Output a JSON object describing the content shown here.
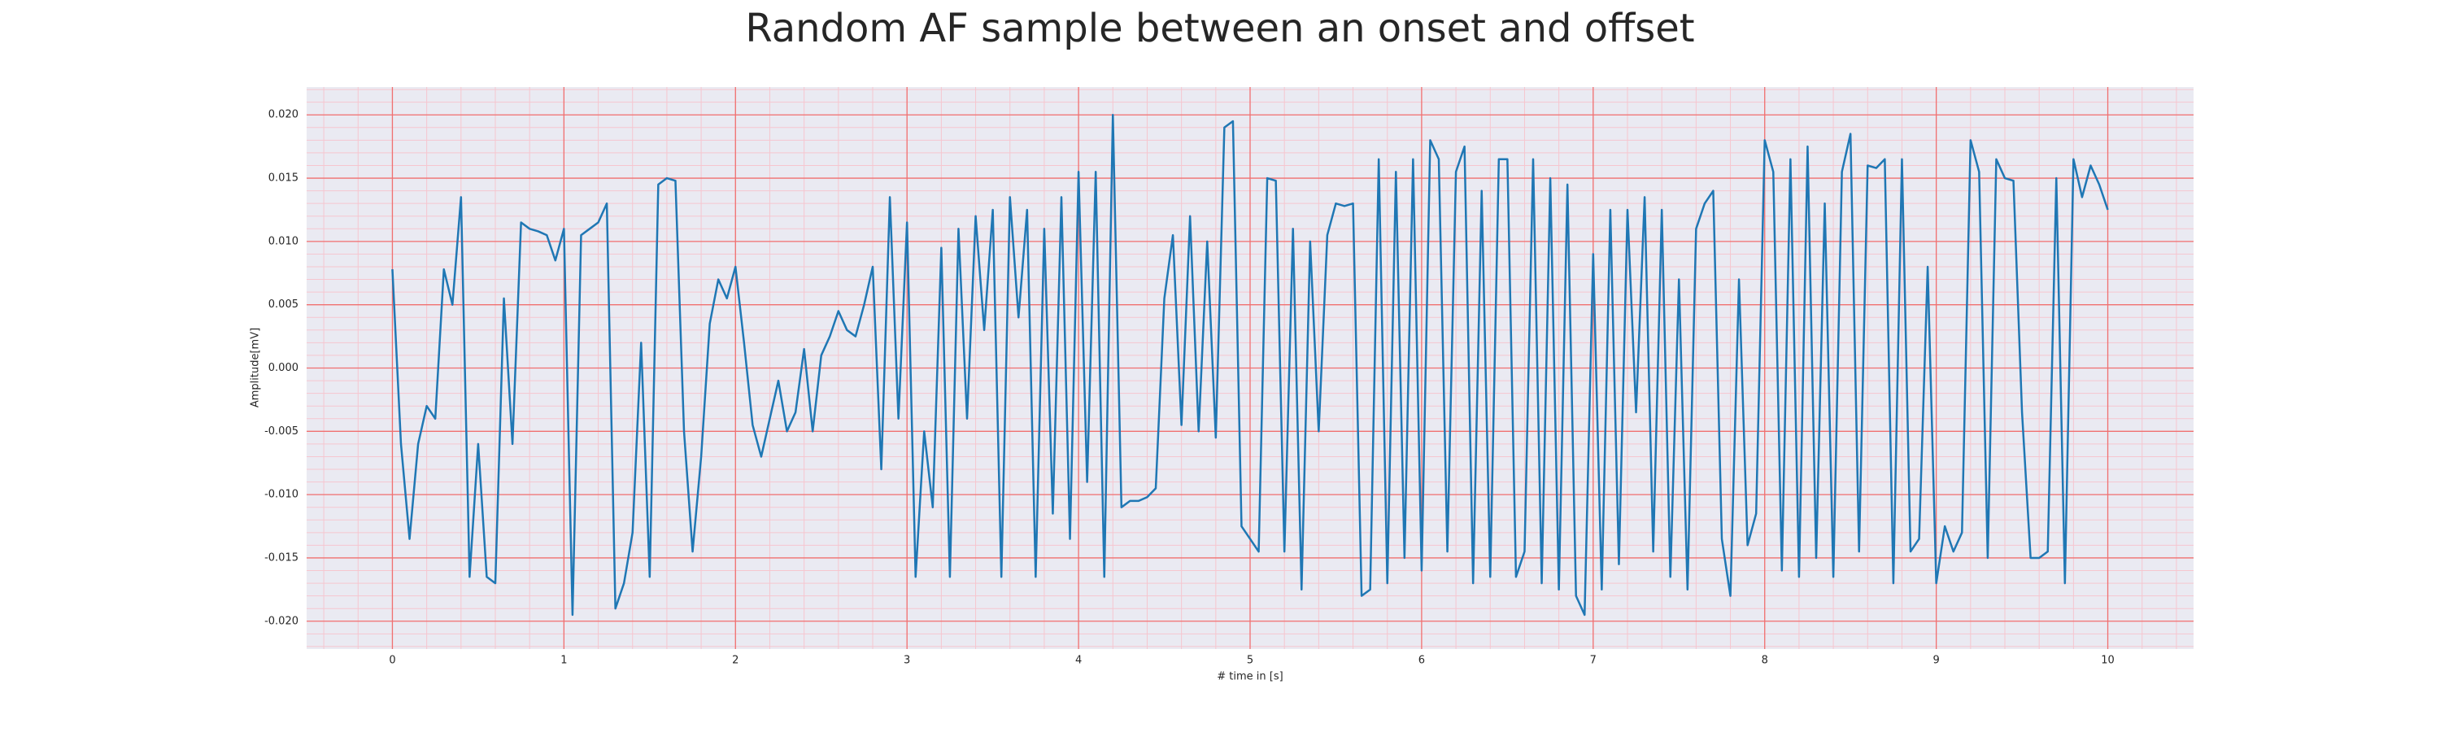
{
  "chart_data": {
    "type": "line",
    "title": "Random AF sample between an onset and offset",
    "x_label": "# time in [s]",
    "y_label": "Amplitude[mV]",
    "color": "#1f77b4",
    "grid": true,
    "minor_grid": true,
    "xlim": [
      -0.5,
      10.5
    ],
    "ylim": [
      -0.0222,
      0.0222
    ],
    "xticks": [
      0,
      1,
      2,
      3,
      4,
      5,
      6,
      7,
      8,
      9,
      10
    ],
    "yticks": [
      {
        "value": -0.02,
        "label": "-0.020"
      },
      {
        "value": -0.015,
        "label": "-0.015"
      },
      {
        "value": -0.01,
        "label": "-0.010"
      },
      {
        "value": -0.005,
        "label": "-0.005"
      },
      {
        "value": 0,
        "label": "0.000"
      },
      {
        "value": 0.005,
        "label": "0.005"
      },
      {
        "value": 0.01,
        "label": "0.010"
      },
      {
        "value": 0.015,
        "label": "0.015"
      },
      {
        "value": 0.02,
        "label": "0.020"
      }
    ],
    "x": [
      0,
      0.05,
      0.1,
      0.15,
      0.2,
      0.25,
      0.3,
      0.35,
      0.4,
      0.45,
      0.5,
      0.55,
      0.6,
      0.65,
      0.7,
      0.75,
      0.8,
      0.85,
      0.9,
      0.95,
      1,
      1.05,
      1.1,
      1.15,
      1.2,
      1.25,
      1.3,
      1.35,
      1.4,
      1.45,
      1.5,
      1.55,
      1.6,
      1.65,
      1.7,
      1.75,
      1.8,
      1.85,
      1.9,
      1.95,
      2,
      2.05,
      2.1,
      2.15,
      2.2,
      2.25,
      2.3,
      2.35,
      2.4,
      2.45,
      2.5,
      2.55,
      2.6,
      2.65,
      2.7,
      2.75,
      2.8,
      2.85,
      2.9,
      2.95,
      3,
      3.05,
      3.1,
      3.15,
      3.2,
      3.25,
      3.3,
      3.35,
      3.4,
      3.45,
      3.5,
      3.55,
      3.6,
      3.65,
      3.7,
      3.75,
      3.8,
      3.85,
      3.9,
      3.95,
      4,
      4.05,
      4.1,
      4.15,
      4.2,
      4.25,
      4.3,
      4.35,
      4.4,
      4.45,
      4.5,
      4.55,
      4.6,
      4.65,
      4.7,
      4.75,
      4.8,
      4.85,
      4.9,
      4.95,
      5,
      5.05,
      5.1,
      5.15,
      5.2,
      5.25,
      5.3,
      5.35,
      5.4,
      5.45,
      5.5,
      5.55,
      5.6,
      5.65,
      5.7,
      5.75,
      5.8,
      5.85,
      5.9,
      5.95,
      6,
      6.05,
      6.1,
      6.15,
      6.2,
      6.25,
      6.3,
      6.35,
      6.4,
      6.45,
      6.5,
      6.55,
      6.6,
      6.65,
      6.7,
      6.75,
      6.8,
      6.85,
      6.9,
      6.95,
      7,
      7.05,
      7.1,
      7.15,
      7.2,
      7.25,
      7.3,
      7.35,
      7.4,
      7.45,
      7.5,
      7.55,
      7.6,
      7.65,
      7.7,
      7.75,
      7.8,
      7.85,
      7.9,
      7.95,
      8,
      8.05,
      8.1,
      8.15,
      8.2,
      8.25,
      8.3,
      8.35,
      8.4,
      8.45,
      8.5,
      8.55,
      8.6,
      8.65,
      8.7,
      8.75,
      8.8,
      8.85,
      8.9,
      8.95,
      9,
      9.05,
      9.1,
      9.15,
      9.2,
      9.25,
      9.3,
      9.35,
      9.4,
      9.45,
      9.5,
      9.55,
      9.6,
      9.65,
      9.7,
      9.75,
      9.8,
      9.85,
      9.9,
      9.95,
      10
    ],
    "values": [
      0.0078,
      -0.006,
      -0.0135,
      -0.006,
      -0.003,
      -0.004,
      0.0078,
      0.005,
      0.0135,
      -0.0165,
      -0.006,
      -0.0165,
      -0.017,
      0.0055,
      -0.006,
      0.0115,
      0.011,
      0.0108,
      0.0105,
      0.0085,
      0.011,
      -0.0195,
      0.0105,
      0.011,
      0.0115,
      0.013,
      -0.019,
      -0.017,
      -0.013,
      0.002,
      -0.0165,
      0.0145,
      0.015,
      0.0148,
      -0.005,
      -0.0145,
      -0.007,
      0.0035,
      0.007,
      0.0055,
      0.008,
      0.002,
      -0.0045,
      -0.007,
      -0.004,
      -0.001,
      -0.005,
      -0.0035,
      0.0015,
      -0.005,
      0.001,
      0.0025,
      0.0045,
      0.003,
      0.0025,
      0.005,
      0.008,
      -0.008,
      0.0135,
      -0.004,
      0.0115,
      -0.0165,
      -0.005,
      -0.011,
      0.0095,
      -0.0165,
      0.011,
      -0.004,
      0.012,
      0.003,
      0.0125,
      -0.0165,
      0.0135,
      0.004,
      0.0125,
      -0.0165,
      0.011,
      -0.0115,
      0.0135,
      -0.0135,
      0.0155,
      -0.009,
      0.0155,
      -0.0165,
      0.02,
      -0.011,
      -0.0105,
      -0.0105,
      -0.0102,
      -0.0095,
      0.0055,
      0.0105,
      -0.0045,
      0.012,
      -0.005,
      0.01,
      -0.0055,
      0.019,
      0.0195,
      -0.0125,
      -0.0135,
      -0.0145,
      0.015,
      0.0148,
      -0.0145,
      0.011,
      -0.0175,
      0.01,
      -0.005,
      0.0105,
      0.013,
      0.0128,
      0.013,
      -0.018,
      -0.0175,
      0.0165,
      -0.017,
      0.0155,
      -0.015,
      0.0165,
      -0.016,
      0.018,
      0.0165,
      -0.0145,
      0.0155,
      0.0175,
      -0.017,
      0.014,
      -0.0165,
      0.0165,
      0.0165,
      -0.0165,
      -0.0145,
      0.0165,
      -0.017,
      0.015,
      -0.0175,
      0.0145,
      -0.018,
      -0.0195,
      0.009,
      -0.0175,
      0.0125,
      -0.0155,
      0.0125,
      -0.0035,
      0.0135,
      -0.0145,
      0.0125,
      -0.0165,
      0.007,
      -0.0175,
      0.011,
      0.013,
      0.014,
      -0.0135,
      -0.018,
      0.007,
      -0.014,
      -0.0115,
      0.018,
      0.0155,
      -0.016,
      0.0165,
      -0.0165,
      0.0175,
      -0.015,
      0.013,
      -0.0165,
      0.0155,
      0.0185,
      -0.0145,
      0.016,
      0.0158,
      0.0165,
      -0.017,
      0.0165,
      -0.0145,
      -0.0135,
      0.008,
      -0.017,
      -0.0125,
      -0.0145,
      -0.013,
      0.018,
      0.0155,
      -0.015,
      0.0165,
      0.015,
      0.0148,
      -0.0035,
      -0.015,
      -0.015,
      -0.0145,
      0.015,
      -0.017,
      0.0165,
      0.0135,
      0.016,
      0.0145,
      0.0125
    ]
  }
}
